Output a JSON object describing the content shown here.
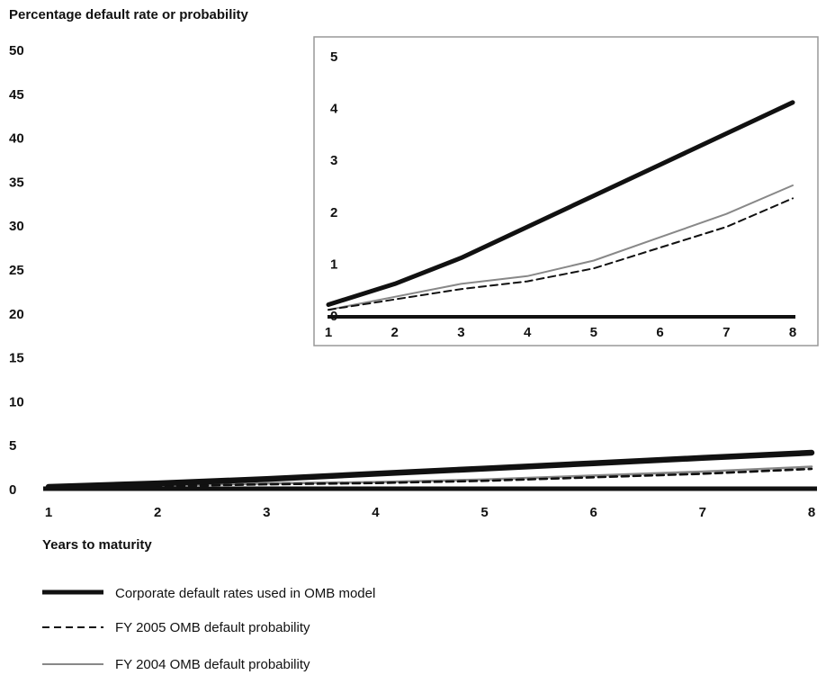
{
  "chart_data": [
    {
      "type": "line",
      "ylabel": "Percentage default rate or probability",
      "xlabel": "Years to maturity",
      "x": [
        1,
        2,
        3,
        4,
        5,
        6,
        7,
        8
      ],
      "xlim": [
        1,
        8
      ],
      "ylim": [
        0,
        50
      ],
      "yticks": [
        0,
        5,
        10,
        15,
        20,
        25,
        30,
        35,
        40,
        45,
        50
      ],
      "grid": false,
      "series": [
        {
          "name": "Corporate default rates used in OMB model",
          "values": [
            0.2,
            0.6,
            1.1,
            1.7,
            2.3,
            2.9,
            3.5,
            4.1
          ],
          "color": "#111111",
          "style": "thick-solid"
        },
        {
          "name": "FY 2005 OMB default probability",
          "values": [
            0.1,
            0.3,
            0.5,
            0.65,
            0.9,
            1.3,
            1.7,
            2.25
          ],
          "color": "#111111",
          "style": "dashed"
        },
        {
          "name": "FY 2004 OMB default probability",
          "values": [
            0.1,
            0.35,
            0.6,
            0.75,
            1.05,
            1.5,
            1.95,
            2.5
          ],
          "color": "#888888",
          "style": "thin-solid"
        }
      ]
    },
    {
      "type": "line",
      "role": "inset",
      "x": [
        1,
        2,
        3,
        4,
        5,
        6,
        7,
        8
      ],
      "xlim": [
        1,
        8
      ],
      "ylim": [
        0,
        5
      ],
      "yticks": [
        0,
        1,
        2,
        3,
        4,
        5
      ],
      "grid": false,
      "series": [
        {
          "name": "Corporate default rates used in OMB model",
          "values": [
            0.2,
            0.6,
            1.1,
            1.7,
            2.3,
            2.9,
            3.5,
            4.1
          ],
          "color": "#111111",
          "style": "thick-solid"
        },
        {
          "name": "FY 2005 OMB default probability",
          "values": [
            0.1,
            0.3,
            0.5,
            0.65,
            0.9,
            1.3,
            1.7,
            2.25
          ],
          "color": "#111111",
          "style": "dashed"
        },
        {
          "name": "FY 2004 OMB default probability",
          "values": [
            0.1,
            0.35,
            0.6,
            0.75,
            1.05,
            1.5,
            1.95,
            2.5
          ],
          "color": "#888888",
          "style": "thin-solid"
        }
      ]
    }
  ],
  "legend": {
    "placement": "bottom-left",
    "items": [
      {
        "label": "Corporate default rates used in OMB model",
        "style": "thick-solid"
      },
      {
        "label": "FY 2005 OMB default probability",
        "style": "dashed"
      },
      {
        "label": "FY 2004 OMB default probability",
        "style": "thin-solid"
      }
    ]
  }
}
